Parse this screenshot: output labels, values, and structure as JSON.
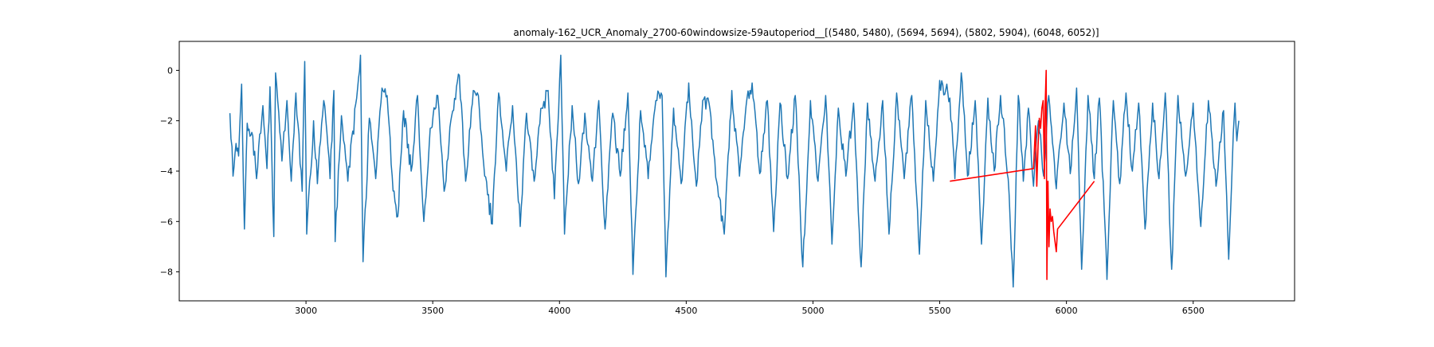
{
  "chart_data": {
    "type": "line",
    "title": "anomaly-162_UCR_Anomaly_2700-60windowsize-59autoperiod__[(5480, 5480), (5694, 5694), (5802, 5904), (6048, 6052)]",
    "xlabel": "",
    "ylabel": "",
    "xlim": [
      2500,
      6900
    ],
    "ylim": [
      -9.15,
      1.15
    ],
    "x_ticks": [
      3000,
      3500,
      4000,
      4500,
      5000,
      5500,
      6000,
      6500
    ],
    "y_ticks": [
      0,
      -2,
      -4,
      -6,
      -8
    ],
    "x_tick_labels": [
      "3000",
      "3500",
      "4000",
      "4500",
      "5000",
      "5500",
      "6000",
      "6500"
    ],
    "y_tick_labels": [
      "0",
      "−2",
      "−4",
      "−6",
      "−8"
    ],
    "grid": false,
    "legend": "none",
    "x_start": 2700,
    "x_end": 6680,
    "period_estimate": 63,
    "series": [
      {
        "color": "#1f77b4",
        "role": "signal",
        "baseline_range": [
          -4.5,
          -1.5
        ],
        "points": [
          [
            2700,
            -1.7
          ],
          [
            2712,
            -4.2
          ],
          [
            2724,
            -2.9
          ],
          [
            2734,
            -3.4
          ],
          [
            2746,
            -0.55
          ],
          [
            2757,
            -6.3
          ],
          [
            2768,
            -2.1
          ],
          [
            2790,
            -2.6
          ],
          [
            2805,
            -4.3
          ],
          [
            2830,
            -1.4
          ],
          [
            2846,
            -3.9
          ],
          [
            2858,
            -0.65
          ],
          [
            2873,
            -6.6
          ],
          [
            2880,
            -0.1
          ],
          [
            2905,
            -3.6
          ],
          [
            2925,
            -1.2
          ],
          [
            2942,
            -4.4
          ],
          [
            2960,
            -0.9
          ],
          [
            2985,
            -4.8
          ],
          [
            2995,
            0.35
          ],
          [
            3003,
            -6.5
          ],
          [
            3030,
            -2.0
          ],
          [
            3045,
            -4.5
          ],
          [
            3070,
            -1.2
          ],
          [
            3095,
            -4.3
          ],
          [
            3110,
            -0.8
          ],
          [
            3115,
            -6.8
          ],
          [
            3140,
            -1.8
          ],
          [
            3165,
            -4.4
          ],
          [
            3200,
            -1.1
          ],
          [
            3215,
            0.6
          ],
          [
            3225,
            -7.6
          ],
          [
            3250,
            -1.9
          ],
          [
            3275,
            -4.3
          ],
          [
            3300,
            -0.7
          ],
          [
            3320,
            -1.0
          ],
          [
            3340,
            -4.2
          ],
          [
            3362,
            -5.8
          ],
          [
            3385,
            -1.6
          ],
          [
            3415,
            -4.0
          ],
          [
            3440,
            -1.0
          ],
          [
            3465,
            -6.0
          ],
          [
            3490,
            -2.3
          ],
          [
            3520,
            -1.0
          ],
          [
            3545,
            -4.8
          ],
          [
            3575,
            -1.8
          ],
          [
            3605,
            -0.2
          ],
          [
            3630,
            -4.4
          ],
          [
            3660,
            -0.8
          ],
          [
            3680,
            -1.0
          ],
          [
            3705,
            -4.2
          ],
          [
            3735,
            -6.1
          ],
          [
            3760,
            -0.9
          ],
          [
            3790,
            -4.0
          ],
          [
            3815,
            -1.4
          ],
          [
            3845,
            -6.2
          ],
          [
            3870,
            -1.7
          ],
          [
            3900,
            -4.4
          ],
          [
            3930,
            -1.5
          ],
          [
            3955,
            -0.8
          ],
          [
            3980,
            -5.1
          ],
          [
            4005,
            0.6
          ],
          [
            4020,
            -6.5
          ],
          [
            4050,
            -1.4
          ],
          [
            4075,
            -4.5
          ],
          [
            4100,
            -1.7
          ],
          [
            4130,
            -4.4
          ],
          [
            4155,
            -1.2
          ],
          [
            4180,
            -6.3
          ],
          [
            4210,
            -1.7
          ],
          [
            4240,
            -4.2
          ],
          [
            4270,
            -0.9
          ],
          [
            4290,
            -8.1
          ],
          [
            4320,
            -1.6
          ],
          [
            4350,
            -4.3
          ],
          [
            4380,
            -1.2
          ],
          [
            4405,
            -1.0
          ],
          [
            4420,
            -8.2
          ],
          [
            4450,
            -1.5
          ],
          [
            4480,
            -4.5
          ],
          [
            4510,
            -0.5
          ],
          [
            4540,
            -4.6
          ],
          [
            4565,
            -1.2
          ],
          [
            4590,
            -1.3
          ],
          [
            4620,
            -4.4
          ],
          [
            4650,
            -6.5
          ],
          [
            4680,
            -0.8
          ],
          [
            4710,
            -4.2
          ],
          [
            4740,
            -1.1
          ],
          [
            4760,
            -0.5
          ],
          [
            4790,
            -4.1
          ],
          [
            4820,
            -1.2
          ],
          [
            4845,
            -6.4
          ],
          [
            4870,
            -1.3
          ],
          [
            4900,
            -4.3
          ],
          [
            4930,
            -1.0
          ],
          [
            4960,
            -7.8
          ],
          [
            4990,
            -1.2
          ],
          [
            5020,
            -4.4
          ],
          [
            5050,
            -1.0
          ],
          [
            5075,
            -6.9
          ],
          [
            5100,
            -1.5
          ],
          [
            5130,
            -4.2
          ],
          [
            5160,
            -1.3
          ],
          [
            5190,
            -7.8
          ],
          [
            5215,
            -1.3
          ],
          [
            5245,
            -4.4
          ],
          [
            5275,
            -1.2
          ],
          [
            5300,
            -6.5
          ],
          [
            5330,
            -0.9
          ],
          [
            5360,
            -4.3
          ],
          [
            5390,
            -1.0
          ],
          [
            5420,
            -7.3
          ],
          [
            5445,
            -1.2
          ],
          [
            5475,
            -4.4
          ],
          [
            5500,
            -0.4
          ],
          [
            5540,
            -1.1
          ],
          [
            5560,
            -4.3
          ],
          [
            5585,
            -0.1
          ],
          [
            5610,
            -4.2
          ],
          [
            5640,
            -1.2
          ],
          [
            5665,
            -6.9
          ],
          [
            5690,
            -1.1
          ],
          [
            5715,
            -4.0
          ],
          [
            5740,
            -1.0
          ],
          [
            5770,
            -4.3
          ],
          [
            5790,
            -8.6
          ],
          [
            5810,
            -1.0
          ],
          [
            5830,
            -4.4
          ],
          [
            5850,
            -1.5
          ],
          [
            5870,
            -4.6
          ],
          [
            5890,
            -2.0
          ],
          [
            5910,
            -4.2
          ],
          [
            5930,
            -1.0
          ],
          [
            5960,
            -4.7
          ],
          [
            5990,
            -1.3
          ],
          [
            6015,
            -4.1
          ],
          [
            6040,
            -0.7
          ],
          [
            6060,
            -7.9
          ],
          [
            6085,
            -1.0
          ],
          [
            6110,
            -4.3
          ],
          [
            6130,
            -1.1
          ],
          [
            6160,
            -8.3
          ],
          [
            6185,
            -1.2
          ],
          [
            6210,
            -4.5
          ],
          [
            6235,
            -0.9
          ],
          [
            6260,
            -4.0
          ],
          [
            6285,
            -1.3
          ],
          [
            6310,
            -6.3
          ],
          [
            6340,
            -1.3
          ],
          [
            6365,
            -4.3
          ],
          [
            6390,
            -0.9
          ],
          [
            6415,
            -7.9
          ],
          [
            6440,
            -1.0
          ],
          [
            6470,
            -4.2
          ],
          [
            6500,
            -1.3
          ],
          [
            6530,
            -6.2
          ],
          [
            6560,
            -1.2
          ],
          [
            6590,
            -4.6
          ],
          [
            6620,
            -1.6
          ],
          [
            6640,
            -7.5
          ],
          [
            6655,
            -3.5
          ],
          [
            6665,
            -1.3
          ],
          [
            6672,
            -2.8
          ],
          [
            6680,
            -2.0
          ]
        ]
      },
      {
        "color": "#ff0000",
        "role": "anomaly",
        "points": [
          [
            5540,
            -4.4
          ],
          [
            5870,
            -3.9
          ],
          [
            5878,
            -2.2
          ],
          [
            5883,
            -4.6
          ],
          [
            5888,
            -3.0
          ],
          [
            5893,
            -1.9
          ],
          [
            5898,
            -2.3
          ],
          [
            5903,
            -1.5
          ],
          [
            5908,
            -1.2
          ],
          [
            5913,
            -4.3
          ],
          [
            5916,
            -1.4
          ],
          [
            5920,
            0.0
          ],
          [
            5923,
            -8.3
          ],
          [
            5927,
            -4.4
          ],
          [
            5931,
            -7.0
          ],
          [
            5935,
            -5.5
          ],
          [
            5940,
            -6.0
          ],
          [
            5945,
            -5.8
          ],
          [
            5950,
            -6.4
          ],
          [
            5955,
            -6.8
          ],
          [
            5960,
            -7.2
          ],
          [
            5965,
            -6.3
          ],
          [
            6110,
            -4.4
          ]
        ]
      }
    ]
  }
}
